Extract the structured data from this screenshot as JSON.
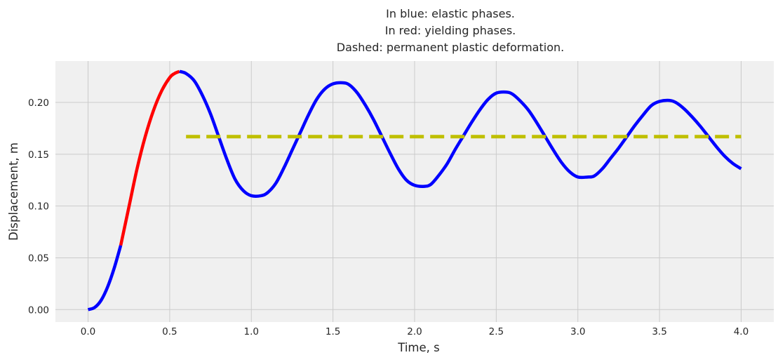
{
  "chart_data": {
    "type": "line",
    "title_lines": [
      "In blue: elastic phases.",
      "In red: yielding phases.",
      "Dashed: permanent plastic deformation."
    ],
    "xlabel": "Time, s",
    "ylabel": "Displacement, m",
    "xlim": [
      -0.2,
      4.2
    ],
    "ylim": [
      -0.012,
      0.24
    ],
    "xticks": [
      0.0,
      0.5,
      1.0,
      1.5,
      2.0,
      2.5,
      3.0,
      3.5,
      4.0
    ],
    "xtick_labels": [
      "0.0",
      "0.5",
      "1.0",
      "1.5",
      "2.0",
      "2.5",
      "3.0",
      "3.5",
      "4.0"
    ],
    "yticks": [
      0.0,
      0.05,
      0.1,
      0.15,
      0.2
    ],
    "ytick_labels": [
      "0.00",
      "0.05",
      "0.10",
      "0.15",
      "0.20"
    ],
    "grid": true,
    "legend": "none",
    "series": [
      {
        "phase": "elastic",
        "color": "#0000ff",
        "style": "solid",
        "x": [
          0.0,
          0.04,
          0.08,
          0.12,
          0.16,
          0.2
        ],
        "y": [
          0.0,
          0.002,
          0.009,
          0.022,
          0.04,
          0.062
        ]
      },
      {
        "phase": "yielding",
        "color": "#ff0000",
        "style": "solid",
        "x": [
          0.2,
          0.25,
          0.3,
          0.35,
          0.4,
          0.45,
          0.5,
          0.53,
          0.56
        ],
        "y": [
          0.062,
          0.099,
          0.136,
          0.167,
          0.192,
          0.211,
          0.224,
          0.228,
          0.23
        ]
      },
      {
        "phase": "elastic",
        "color": "#0000ff",
        "style": "solid",
        "x": [
          0.56,
          0.6,
          0.65,
          0.7,
          0.75,
          0.8,
          0.85,
          0.9,
          0.95,
          1.0,
          1.06,
          1.1,
          1.15,
          1.2,
          1.25,
          1.3,
          1.35,
          1.4,
          1.45,
          1.5,
          1.56,
          1.6,
          1.65,
          1.7,
          1.75,
          1.8,
          1.85,
          1.9,
          1.95,
          2.0,
          2.06,
          2.1,
          2.15,
          2.2,
          2.25,
          2.3,
          2.35,
          2.4,
          2.45,
          2.5,
          2.56,
          2.6,
          2.65,
          2.7,
          2.75,
          2.8,
          2.85,
          2.9,
          2.95,
          3.0,
          3.06,
          3.1,
          3.15,
          3.2,
          3.25,
          3.3,
          3.35,
          3.4,
          3.45,
          3.5,
          3.56,
          3.6,
          3.65,
          3.7,
          3.75,
          3.8,
          3.85,
          3.9,
          3.95,
          4.0
        ],
        "y": [
          0.23,
          0.228,
          0.221,
          0.207,
          0.189,
          0.167,
          0.145,
          0.126,
          0.115,
          0.11,
          0.11,
          0.113,
          0.122,
          0.137,
          0.154,
          0.171,
          0.188,
          0.203,
          0.213,
          0.218,
          0.219,
          0.217,
          0.209,
          0.197,
          0.183,
          0.167,
          0.151,
          0.136,
          0.125,
          0.12,
          0.119,
          0.121,
          0.13,
          0.141,
          0.155,
          0.168,
          0.181,
          0.193,
          0.203,
          0.209,
          0.21,
          0.208,
          0.201,
          0.192,
          0.18,
          0.167,
          0.154,
          0.142,
          0.133,
          0.128,
          0.128,
          0.129,
          0.136,
          0.146,
          0.156,
          0.167,
          0.178,
          0.188,
          0.197,
          0.201,
          0.202,
          0.2,
          0.194,
          0.186,
          0.177,
          0.167,
          0.157,
          0.148,
          0.141,
          0.136
        ]
      },
      {
        "phase": "permanent plastic deformation",
        "color": "#bfbf00",
        "style": "dashed",
        "x": [
          0.6,
          4.0
        ],
        "y": [
          0.167,
          0.167
        ]
      }
    ]
  }
}
